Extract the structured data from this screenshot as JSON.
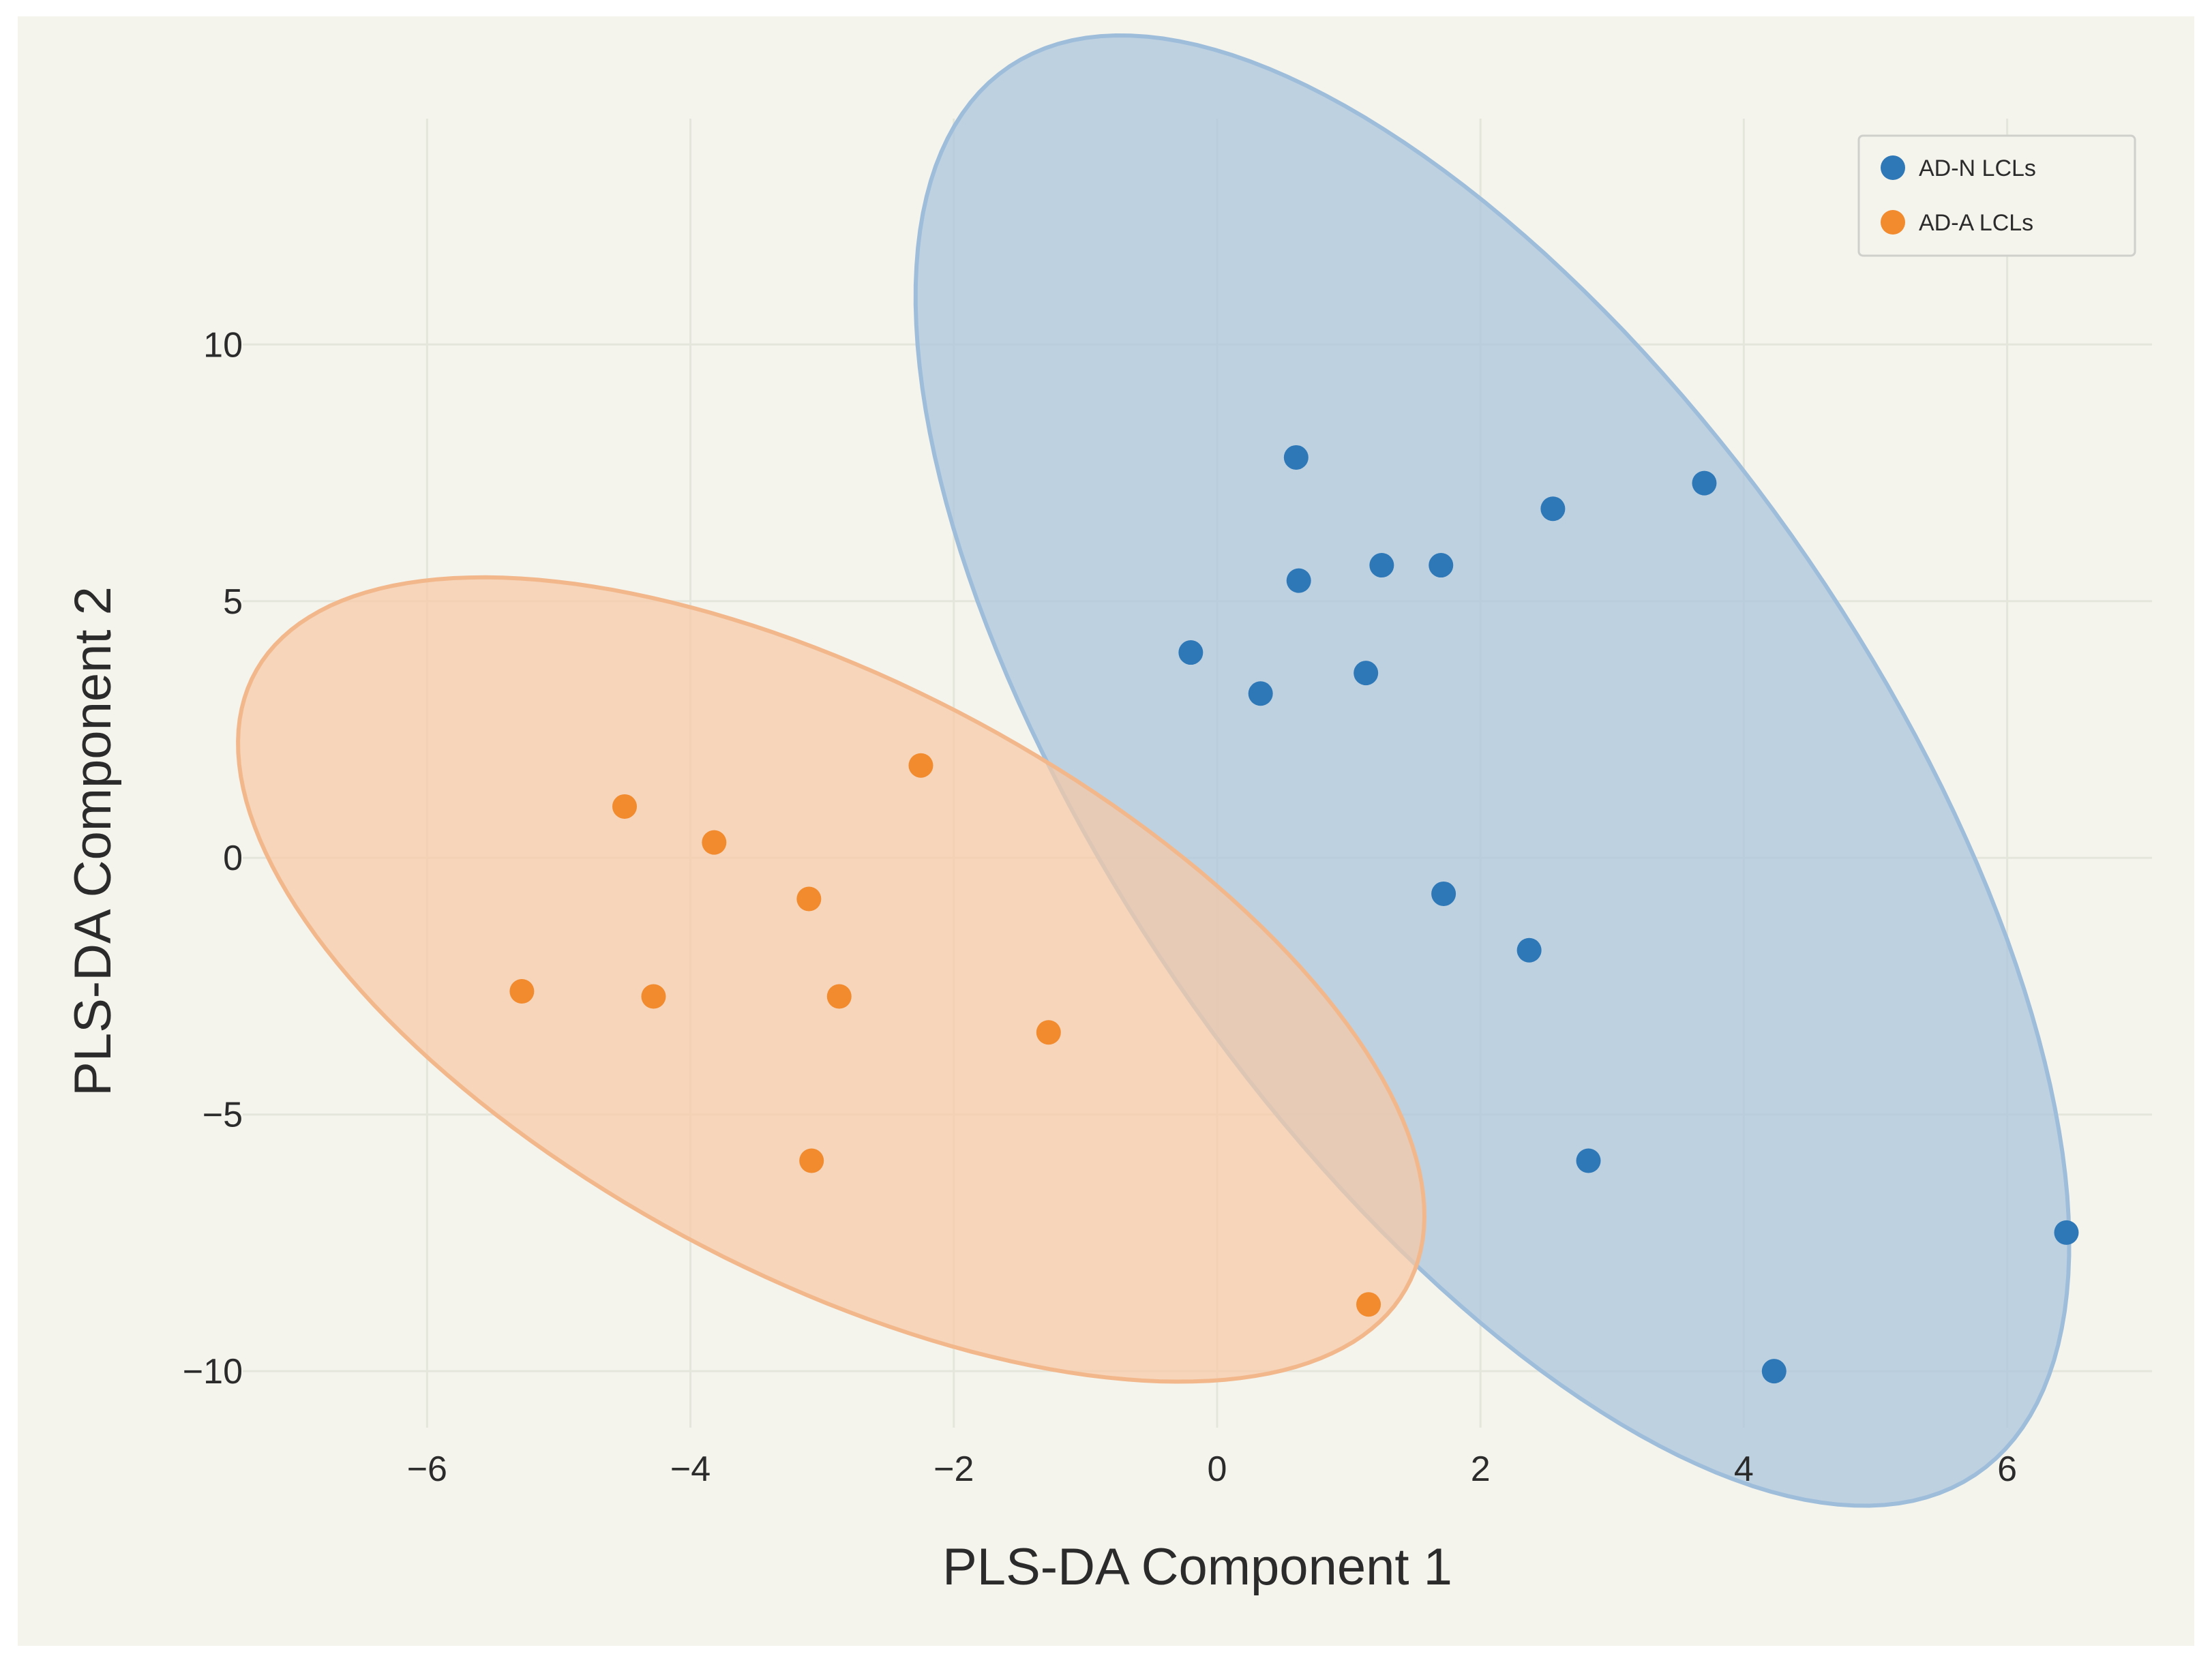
{
  "chart_data": {
    "type": "scatter",
    "title": "",
    "xlabel": "PLS-DA Component 1",
    "ylabel": "PLS-DA Component 2",
    "xlim": [
      -7.4,
      7.1
    ],
    "ylim": [
      -11.1,
      14.4
    ],
    "x_ticks": [
      -6,
      -4,
      -2,
      0,
      2,
      4,
      6
    ],
    "x_tick_labels": [
      "−6",
      "−4",
      "−2",
      "0",
      "2",
      "4",
      "6"
    ],
    "y_ticks": [
      -10,
      -5,
      0,
      5,
      10
    ],
    "y_tick_labels": [
      "−10",
      "−5",
      "0",
      "5",
      "10"
    ],
    "grid": true,
    "legend_position": "top-right",
    "series": [
      {
        "name": "AD-N LCLs",
        "color": "#2e78b8",
        "x": [
          0.6,
          0.62,
          1.25,
          1.7,
          2.55,
          3.7,
          -0.2,
          0.33,
          1.13,
          1.72,
          2.37,
          2.82,
          4.23,
          6.45
        ],
        "y": [
          7.8,
          5.4,
          5.7,
          5.7,
          6.8,
          7.3,
          4.0,
          3.2,
          3.6,
          -0.7,
          -1.8,
          -5.9,
          -10.0,
          -7.3
        ]
      },
      {
        "name": "AD-A LCLs",
        "color": "#f28a2e",
        "x": [
          -2.25,
          -4.5,
          -3.82,
          -3.1,
          -5.28,
          -4.28,
          -2.87,
          -1.28,
          -3.08,
          1.15
        ],
        "y": [
          1.8,
          1.0,
          0.3,
          -0.8,
          -2.6,
          -2.7,
          -2.7,
          -3.4,
          -5.9,
          -8.7
        ]
      }
    ],
    "ellipses": [
      {
        "series": "AD-N LCLs",
        "fill": "#a9c4dc",
        "stroke": "#9dbddb"
      },
      {
        "series": "AD-A LCLs",
        "fill": "#f6c9a6",
        "stroke": "#f2b88c"
      }
    ]
  }
}
